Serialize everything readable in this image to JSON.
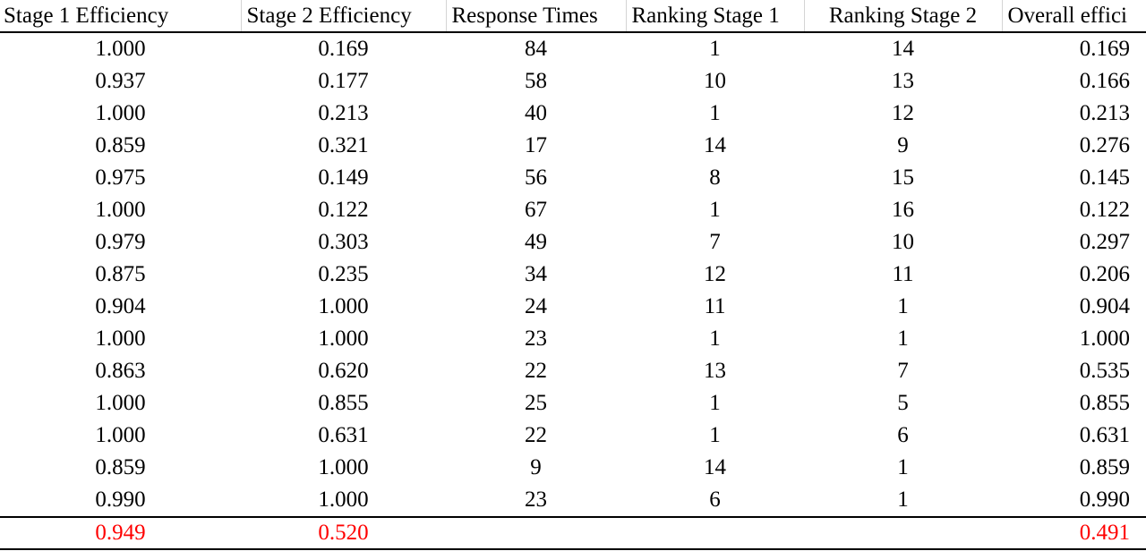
{
  "table": {
    "headers": [
      "Stage 1 Efficiency",
      "Stage 2 Efficiency",
      "Response Times",
      "Ranking Stage 1",
      "Ranking Stage 2",
      "Overall effici"
    ],
    "rows": [
      [
        "1.000",
        "0.169",
        "84",
        "1",
        "14",
        "0.169"
      ],
      [
        "0.937",
        "0.177",
        "58",
        "10",
        "13",
        "0.166"
      ],
      [
        "1.000",
        "0.213",
        "40",
        "1",
        "12",
        "0.213"
      ],
      [
        "0.859",
        "0.321",
        "17",
        "14",
        "9",
        "0.276"
      ],
      [
        "0.975",
        "0.149",
        "56",
        "8",
        "15",
        "0.145"
      ],
      [
        "1.000",
        "0.122",
        "67",
        "1",
        "16",
        "0.122"
      ],
      [
        "0.979",
        "0.303",
        "49",
        "7",
        "10",
        "0.297"
      ],
      [
        "0.875",
        "0.235",
        "34",
        "12",
        "11",
        "0.206"
      ],
      [
        "0.904",
        "1.000",
        "24",
        "11",
        "1",
        "0.904"
      ],
      [
        "1.000",
        "1.000",
        "23",
        "1",
        "1",
        "1.000"
      ],
      [
        "0.863",
        "0.620",
        "22",
        "13",
        "7",
        "0.535"
      ],
      [
        "1.000",
        "0.855",
        "25",
        "1",
        "5",
        "0.855"
      ],
      [
        "1.000",
        "0.631",
        "22",
        "1",
        "6",
        "0.631"
      ],
      [
        "0.859",
        "1.000",
        "9",
        "14",
        "1",
        "0.859"
      ],
      [
        "0.990",
        "1.000",
        "23",
        "6",
        "1",
        "0.990"
      ]
    ],
    "summary": [
      "0.949",
      "0.520",
      "",
      "",
      "",
      "0.491"
    ],
    "summary_color": "#ff0000"
  }
}
